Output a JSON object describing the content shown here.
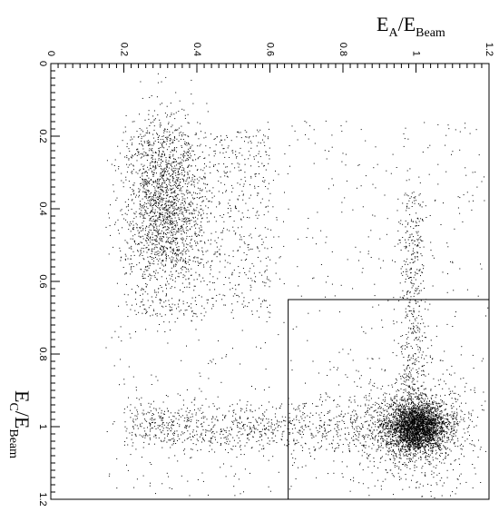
{
  "chart_data": {
    "type": "scatter",
    "title": "",
    "xlabel": {
      "main": "E",
      "sub": "A",
      "sep": "/E",
      "sub2": "Beam"
    },
    "ylabel": {
      "main": "E",
      "sub": "C",
      "sep": "/E",
      "sub2": "Beam"
    },
    "xlim": [
      0,
      1.2
    ],
    "ylim": [
      0,
      1.2
    ],
    "x_axis_position": "top",
    "y_axis_inverted": true,
    "grid": false,
    "legend": "none",
    "x_ticks": [
      "0",
      "0.2",
      "0.4",
      "0.6",
      "0.8",
      "1",
      "1.2"
    ],
    "y_ticks": [
      "0",
      "0.2",
      "0.4",
      "0.6",
      "0.8",
      "1",
      "1.2"
    ],
    "point_color": "#000000",
    "selection_box": {
      "x_range": [
        0.65,
        1.2
      ],
      "y_range": [
        0.65,
        1.2
      ]
    },
    "point_clusters": [
      {
        "name": "peak",
        "x_center": 1.0,
        "y_center": 1.0,
        "x_spread": 0.04,
        "y_spread": 0.035,
        "count": 2600
      },
      {
        "name": "peak-halo",
        "x_center": 1.0,
        "y_center": 1.0,
        "x_spread": 0.09,
        "y_spread": 0.08,
        "count": 900
      },
      {
        "name": "horizontal-band",
        "x_range": [
          0.2,
          1.05
        ],
        "y_center": 1.0,
        "y_spread": 0.035,
        "count": 1100
      },
      {
        "name": "vertical-band",
        "x_center": 0.99,
        "x_spread": 0.02,
        "y_range": [
          0.35,
          1.0
        ],
        "count": 500
      },
      {
        "name": "upper-left-cluster",
        "x_center": 0.31,
        "y_center": 0.38,
        "x_spread": 0.05,
        "y_spread": 0.12,
        "count": 1500
      },
      {
        "name": "upper-diffuse",
        "x_range": [
          0.2,
          0.6
        ],
        "y_range": [
          0.18,
          0.7
        ],
        "count": 900
      },
      {
        "name": "background",
        "x_range": [
          0.15,
          1.2
        ],
        "y_range": [
          0.15,
          1.2
        ],
        "count": 700
      }
    ]
  }
}
